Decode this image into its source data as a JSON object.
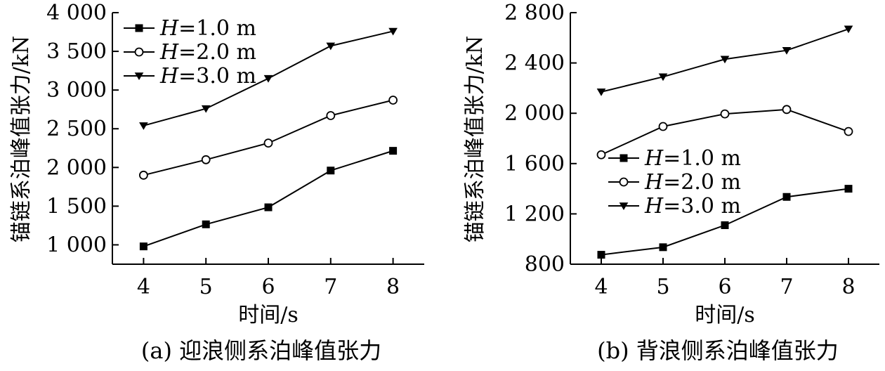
{
  "chart_data": [
    {
      "type": "line",
      "caption": "(a) 迎浪侧系泊峰值张力",
      "xlabel": "时间/s",
      "ylabel": "锚链系泊峰值张力/kN",
      "x": [
        4,
        5,
        6,
        7,
        8
      ],
      "xticks": [
        "4",
        "5",
        "6",
        "7",
        "8"
      ],
      "xlim": [
        3.5,
        8.5
      ],
      "ylim": [
        750,
        4000
      ],
      "yticks": [
        1000,
        1500,
        2000,
        2500,
        3000,
        3500,
        4000
      ],
      "ytick_labels": [
        "1 000",
        "1 500",
        "2 000",
        "2 500",
        "3 000",
        "3 500",
        "4 000"
      ],
      "grid": false,
      "legend_position": "top-left",
      "series": [
        {
          "name": "H=1.0 m",
          "name_var": "H",
          "name_rest": "=1.0 m",
          "marker": "square",
          "values": [
            980,
            1265,
            1485,
            1960,
            2215
          ]
        },
        {
          "name": "H=2.0 m",
          "name_var": "H",
          "name_rest": "=2.0 m",
          "marker": "circle",
          "values": [
            1900,
            2100,
            2315,
            2670,
            2870
          ]
        },
        {
          "name": "H=3.0 m",
          "name_var": "H",
          "name_rest": "=3.0 m",
          "marker": "triangle-down",
          "values": [
            2540,
            2760,
            3150,
            3570,
            3760
          ]
        }
      ]
    },
    {
      "type": "line",
      "caption": "(b) 背浪侧系泊峰值张力",
      "xlabel": "时间/s",
      "ylabel": "锚链系泊峰值张力/kN",
      "x": [
        4,
        5,
        6,
        7,
        8
      ],
      "xticks": [
        "4",
        "5",
        "6",
        "7",
        "8"
      ],
      "xlim": [
        3.5,
        8.5
      ],
      "ylim": [
        800,
        2800
      ],
      "yticks": [
        800,
        1200,
        1600,
        2000,
        2400,
        2800
      ],
      "ytick_labels": [
        "800",
        "1 200",
        "1 600",
        "2 000",
        "2 400",
        "2 800"
      ],
      "grid": false,
      "legend_position": "center-left",
      "series": [
        {
          "name": "H=1.0 m",
          "name_var": "H",
          "name_rest": "=1.0 m",
          "marker": "square",
          "values": [
            875,
            935,
            1110,
            1335,
            1400
          ]
        },
        {
          "name": "H=2.0 m",
          "name_var": "H",
          "name_rest": "=2.0 m",
          "marker": "circle",
          "values": [
            1670,
            1895,
            1995,
            2030,
            1855
          ]
        },
        {
          "name": "H=3.0 m",
          "name_var": "H",
          "name_rest": "=3.0 m",
          "marker": "triangle-down",
          "values": [
            2170,
            2290,
            2430,
            2500,
            2670
          ]
        }
      ]
    }
  ]
}
